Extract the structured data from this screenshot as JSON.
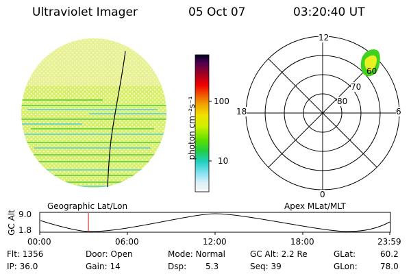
{
  "header": {
    "title": "Ultraviolet Imager",
    "date": "05 Oct 07",
    "time": "03:20:40 UT"
  },
  "left_panel": {
    "caption": "Geographic Lat/Lon"
  },
  "colorbar": {
    "unit_label": "photon cm⁻²s⁻¹",
    "ticks": [
      "100",
      "10"
    ],
    "scale": "log"
  },
  "polar_plot": {
    "caption": "Apex MLat/MLT",
    "mlt_labels": {
      "top": "12",
      "left": "18",
      "right": "6",
      "bottom": "0"
    },
    "lat_labels": [
      "60",
      "70",
      "80"
    ]
  },
  "altitude_plot": {
    "ylabel": "GC Alt",
    "yticks": [
      "9.0",
      "1.8"
    ],
    "xticks": [
      "00:00",
      "06:00",
      "12:00",
      "18:00",
      "23:59"
    ],
    "current_time_fraction": 0.139
  },
  "status": {
    "flt": "Flt: 1356",
    "ip": "IP: 36.0",
    "door": "Door: Open",
    "gain": "Gain: 14",
    "mode": "Mode: Normal",
    "dsp_label": "Dsp:",
    "dsp_value": "5.3",
    "gc_alt": "GC Alt: 2.2 Re",
    "seq": "Seq: 39",
    "glat_label": "GLat:",
    "glat_value": "60.2",
    "glon_label": "GLon:",
    "glon_value": "78.0"
  },
  "colors": {
    "image_base": "#d8f070",
    "image_light": "#f4f4b0",
    "image_green": "#60d040",
    "image_cyan": "#60d0d0",
    "aurora_green": "#40d020",
    "aurora_yellow": "#e8f020"
  }
}
